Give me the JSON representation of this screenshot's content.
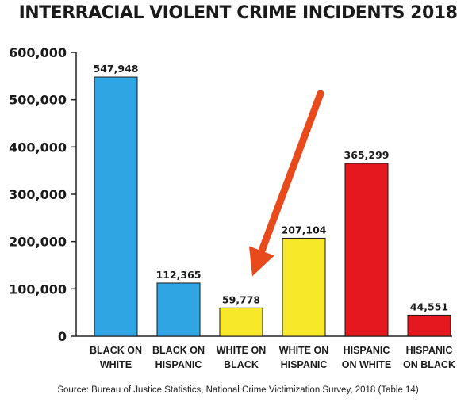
{
  "chart_data": {
    "type": "bar",
    "title": "INTERRACIAL VIOLENT CRIME INCIDENTS 2018",
    "categories": [
      [
        "BLACK ON",
        "WHITE"
      ],
      [
        "BLACK ON",
        "HISPANIC"
      ],
      [
        "WHITE ON",
        "BLACK"
      ],
      [
        "WHITE ON",
        "HISPANIC"
      ],
      [
        "HISPANIC",
        "ON WHITE"
      ],
      [
        "HISPANIC",
        "ON BLACK"
      ]
    ],
    "values": [
      547948,
      112365,
      59778,
      207104,
      365299,
      44551
    ],
    "value_labels": [
      "547,948",
      "112,365",
      "59,778",
      "207,104",
      "365,299",
      "44,551"
    ],
    "bar_colors": [
      "#2fa6e3",
      "#2fa6e3",
      "#f7e92a",
      "#f7e92a",
      "#e5171f",
      "#e5171f"
    ],
    "ylim": [
      0,
      600000
    ],
    "yticks": [
      0,
      100000,
      200000,
      300000,
      400000,
      500000,
      600000
    ],
    "ytick_labels": [
      "0",
      "100,000",
      "200,000",
      "300,000",
      "400,000",
      "500,000",
      "600,000"
    ],
    "xlabel": "",
    "ylabel": "",
    "grid": false,
    "annotation": {
      "type": "arrow",
      "color": "#e84a1b",
      "points_to": "WHITE ON BLACK"
    },
    "source": "Source: Bureau of Justice Statistics, National Crime Victimization Survey, 2018 (Table 14)"
  }
}
